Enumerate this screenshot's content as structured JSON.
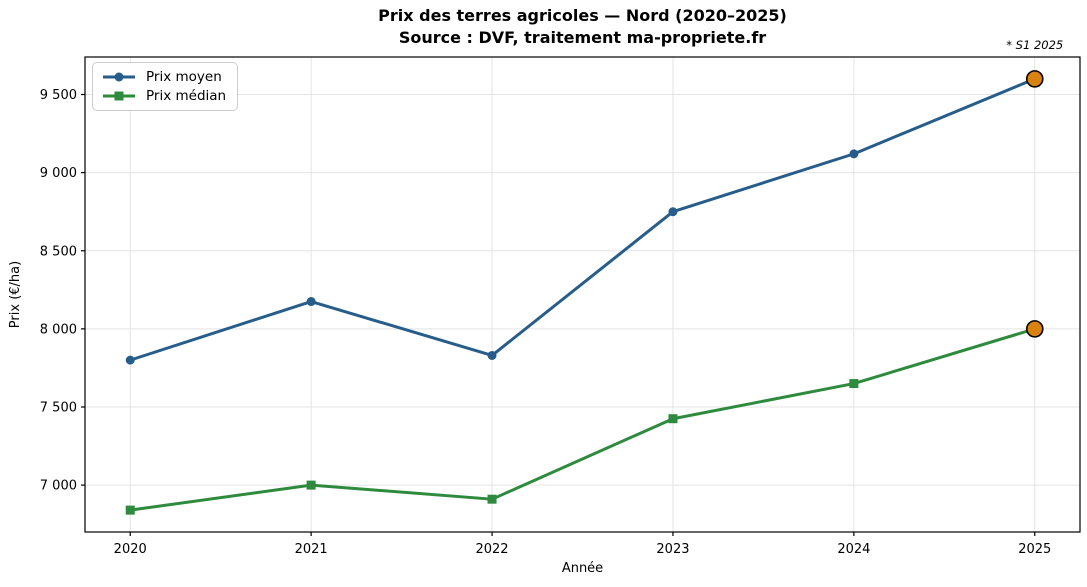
{
  "header": {
    "title": "Prix des terres agricoles — Nord (2020–2025)",
    "subtitle": "Source : DVF, traitement ma-propriete.fr"
  },
  "annotation": {
    "text": "* S1 2025",
    "color": "#d9820f"
  },
  "chart_data": {
    "type": "line",
    "x": [
      2020,
      2021,
      2022,
      2023,
      2024,
      2025
    ],
    "series": [
      {
        "name": "Prix moyen",
        "values": [
          7800,
          8175,
          7830,
          8750,
          9120,
          9600
        ],
        "color": "#275d8a",
        "marker": "circle"
      },
      {
        "name": "Prix médian",
        "values": [
          6840,
          7000,
          6910,
          7425,
          7650,
          8000
        ],
        "color": "#2e8b3e",
        "marker": "square"
      }
    ],
    "highlight_last_point": {
      "fill": "#d9820f",
      "edge": "#000000"
    },
    "title": "Prix des terres agricoles — Nord (2020–2025)",
    "xlabel": "Année",
    "ylabel": "Prix (€/ha)",
    "xlim": [
      2019.75,
      2025.25
    ],
    "ylim": [
      6700,
      9740
    ],
    "xticks": {
      "values": [
        2020,
        2021,
        2022,
        2023,
        2024,
        2025
      ],
      "labels": [
        "2020",
        "2021",
        "2022",
        "2023",
        "2024",
        "2025"
      ]
    },
    "yticks": {
      "values": [
        7000,
        7500,
        8000,
        8500,
        9000,
        9500
      ],
      "labels": [
        "7 000",
        "7 500",
        "8 000",
        "8 500",
        "9 000",
        "9 500"
      ]
    },
    "grid": true,
    "grid_color": "#e4e4e4",
    "legend_position": "upper-left"
  }
}
